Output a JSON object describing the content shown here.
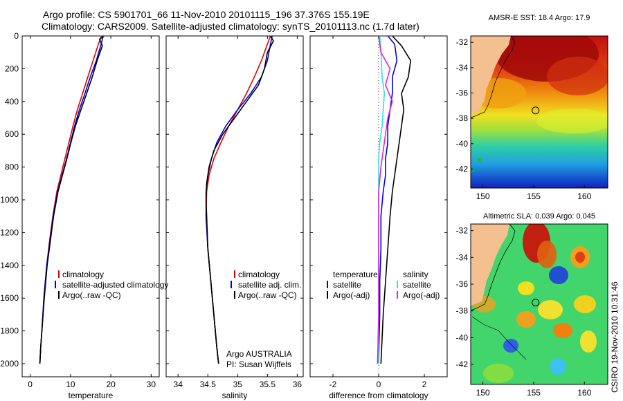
{
  "header": {
    "line1": "Argo profile: CS 5901701_66 11-Nov-2010 20101115_196 37.376S 155.19E",
    "line2": "Climatology: CARS2009. Satellite-adjusted climatology: synTS_20101113.nc (1.7d later)"
  },
  "colors": {
    "climatology": "#e00000",
    "satellite": "#0000e0",
    "argo": "#000000",
    "cyan": "#2fe0e8",
    "magenta": "#e020e0",
    "land": "#f4c090"
  },
  "chart_data": [
    {
      "type": "line",
      "name": "temperature",
      "xlabel": "temperature",
      "ylabel": "",
      "xlim": [
        -2,
        32
      ],
      "ylim": [
        2080,
        0
      ],
      "xticks": [
        0,
        10,
        20,
        30
      ],
      "yticks": [
        0,
        200,
        400,
        600,
        800,
        1000,
        1200,
        1400,
        1600,
        1800,
        2000
      ],
      "series": [
        {
          "name": "climatology",
          "color": "#e00000",
          "x": [
            17.7,
            16.9,
            15.6,
            14.3,
            13.0,
            11.7,
            10.6,
            9.6,
            8.6,
            7.6,
            6.6,
            5.6,
            4.8,
            4.1,
            3.4,
            2.9,
            2.6,
            2.4
          ],
          "y": [
            0,
            50,
            150,
            250,
            350,
            450,
            550,
            650,
            750,
            850,
            950,
            1100,
            1250,
            1400,
            1600,
            1800,
            1900,
            2000
          ]
        },
        {
          "name": "satellite-adjusted climatology",
          "color": "#0000e0",
          "x": [
            18.1,
            17.6,
            16.4,
            14.9,
            13.6,
            12.2,
            11.0,
            10.0,
            9.0,
            7.9,
            6.8,
            5.7,
            4.9,
            4.1,
            3.4,
            2.9,
            2.6,
            2.4
          ],
          "y": [
            0,
            50,
            150,
            250,
            350,
            450,
            550,
            650,
            750,
            850,
            950,
            1100,
            1250,
            1400,
            1600,
            1800,
            1900,
            2000
          ]
        },
        {
          "name": "Argo(..raw -QC)",
          "color": "#000000",
          "x": [
            18.3,
            17.2,
            17.9,
            16.6,
            15.4,
            14.0,
            12.6,
            11.2,
            10.1,
            9.1,
            8.0,
            6.9,
            5.8,
            5.0,
            4.2,
            3.5,
            2.9,
            2.6,
            2.4
          ],
          "y": [
            0,
            20,
            60,
            150,
            250,
            350,
            450,
            550,
            650,
            750,
            850,
            950,
            1100,
            1250,
            1400,
            1600,
            1800,
            1900,
            2000
          ]
        }
      ],
      "legend": [
        "climatology",
        "satellite-adjusted climatology",
        "Argo(..raw -QC)"
      ]
    },
    {
      "type": "line",
      "name": "salinity",
      "xlabel": "salinity",
      "ylabel": "",
      "xlim": [
        33.8,
        36.1
      ],
      "ylim": [
        2080,
        0
      ],
      "xticks": [
        34,
        34.5,
        35,
        35.5,
        36
      ],
      "series": [
        {
          "name": "climatology",
          "color": "#e00000",
          "x": [
            35.55,
            35.5,
            35.4,
            35.28,
            35.15,
            35.0,
            34.85,
            34.72,
            34.6,
            34.52,
            34.48,
            34.47,
            34.5,
            34.55,
            34.6,
            34.65,
            34.68
          ],
          "y": [
            0,
            50,
            150,
            250,
            350,
            450,
            550,
            650,
            750,
            850,
            950,
            1100,
            1300,
            1500,
            1700,
            1900,
            2000
          ]
        },
        {
          "name": "satellite adj. clim.",
          "color": "#0000e0",
          "x": [
            35.58,
            35.55,
            35.5,
            35.4,
            35.22,
            35.0,
            34.8,
            34.65,
            34.56,
            34.5,
            34.47,
            34.47,
            34.5,
            34.55,
            34.6,
            34.65,
            34.68
          ],
          "y": [
            0,
            50,
            150,
            250,
            350,
            450,
            550,
            650,
            750,
            850,
            950,
            1100,
            1300,
            1500,
            1700,
            1900,
            2000
          ]
        },
        {
          "name": "Argo(..raw -QC)",
          "color": "#000000",
          "x": [
            35.55,
            35.6,
            35.5,
            35.45,
            35.35,
            35.15,
            34.95,
            34.75,
            34.6,
            34.52,
            34.48,
            34.47,
            34.5,
            34.55,
            34.6,
            34.65,
            34.68
          ],
          "y": [
            0,
            30,
            100,
            200,
            300,
            400,
            500,
            600,
            700,
            800,
            900,
            1000,
            1300,
            1500,
            1700,
            1900,
            2000
          ]
        }
      ],
      "legend": [
        "climatology",
        "satellite adj. clim.",
        "Argo(..raw -QC)"
      ],
      "annotation": [
        "Argo AUSTRALIA",
        "PI: Susan Wijffels"
      ]
    },
    {
      "type": "line",
      "name": "difference from climatology",
      "xlabel": "difference from climatology",
      "ylabel": "",
      "xlim": [
        -3,
        3
      ],
      "ylim": [
        2080,
        0
      ],
      "xticks": [
        -2,
        0,
        2
      ],
      "series": [
        {
          "name": "temperature satellite",
          "color": "#0000e0",
          "x": [
            0.4,
            0.7,
            0.8,
            0.6,
            0.6,
            0.5,
            0.4,
            0.4,
            0.3,
            0.3,
            0.2,
            0.1,
            0.1,
            0.05,
            0.05,
            0.0
          ],
          "y": [
            0,
            50,
            150,
            250,
            350,
            450,
            550,
            650,
            750,
            850,
            950,
            1100,
            1300,
            1500,
            1700,
            2000
          ]
        },
        {
          "name": "temperature Argo(-adj)",
          "color": "#000000",
          "x": [
            0.6,
            1.0,
            1.4,
            1.3,
            1.0,
            1.1,
            1.0,
            0.9,
            0.8,
            0.7,
            0.6,
            0.5,
            0.4,
            0.3,
            0.2,
            0.1
          ],
          "y": [
            0,
            60,
            150,
            250,
            350,
            450,
            550,
            650,
            750,
            850,
            950,
            1100,
            1300,
            1500,
            1700,
            2000
          ]
        },
        {
          "name": "salinity satellite",
          "color": "#2fe0e8",
          "x": [
            0.05,
            0.1,
            0.15,
            0.25,
            0.2,
            0.15,
            0.05,
            0.0,
            0.0,
            0.0,
            0.0,
            0.0,
            0.0,
            0.0
          ],
          "y": [
            0,
            100,
            250,
            350,
            450,
            550,
            650,
            750,
            900,
            1100,
            1300,
            1500,
            1700,
            2000
          ]
        },
        {
          "name": "salinity Argo(-adj)",
          "color": "#e020e0",
          "x": [
            0.0,
            0.1,
            0.5,
            0.3,
            0.6,
            0.4,
            0.3,
            0.2,
            0.1,
            0.0,
            0.0,
            0.0,
            0.0,
            -0.05
          ],
          "y": [
            0,
            100,
            200,
            300,
            400,
            500,
            600,
            700,
            800,
            950,
            1200,
            1500,
            1700,
            2000
          ]
        }
      ],
      "legend_temperature_header": "temperature",
      "legend_salinity_header": "salinity",
      "legend_temperature": [
        "satellite",
        "Argo(-adj)"
      ],
      "legend_salinity": [
        "satellite",
        "Argo(-adj)"
      ]
    },
    {
      "type": "heatmap",
      "name": "amsr_map",
      "title": "AMSR-E SST: 18.4 Argo: 17.9",
      "xlim": [
        148.8,
        162.3
      ],
      "ylim": [
        -43.5,
        -31.5
      ],
      "xticks": [
        150,
        155,
        160
      ],
      "yticks": [
        -32,
        -34,
        -36,
        -38,
        -40,
        -42
      ],
      "marker": {
        "lon": 155.19,
        "lat": -37.376
      }
    },
    {
      "type": "heatmap",
      "name": "sla_map",
      "title": "Altimetric SLA: 0.039 Argo: 0.045",
      "xlim": [
        148.8,
        162.3
      ],
      "ylim": [
        -43.5,
        -31.5
      ],
      "xticks": [
        150,
        155,
        160
      ],
      "yticks": [
        -32,
        -34,
        -36,
        -38,
        -40,
        -42
      ],
      "marker": {
        "lon": 155.19,
        "lat": -37.376
      }
    }
  ],
  "footer": {
    "credit": "CSIRO 19-Nov-2010 10:31:46"
  }
}
